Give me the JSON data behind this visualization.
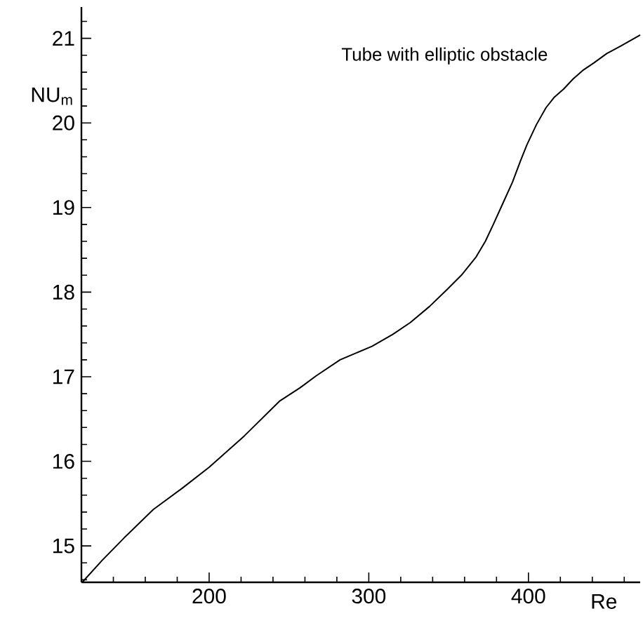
{
  "chart_data": {
    "type": "line",
    "xlabel": "Re",
    "ylabel": "NU$_{m}$",
    "annotations": [
      "Tube with elliptic obstacle"
    ],
    "xlim": [
      120,
      470
    ],
    "ylim": [
      14.57,
      21.37
    ],
    "xticks": [
      {
        "value": 140,
        "label": null
      },
      {
        "value": 160,
        "label": null
      },
      {
        "value": 180,
        "label": null
      },
      200,
      {
        "value": 220,
        "label": null
      },
      {
        "value": 240,
        "label": null
      },
      {
        "value": 260,
        "label": null
      },
      {
        "value": 280,
        "label": null
      },
      300,
      {
        "value": 320,
        "label": null
      },
      {
        "value": 340,
        "label": null
      },
      {
        "value": 360,
        "label": null
      },
      {
        "value": 380,
        "label": null
      },
      400,
      {
        "value": 420,
        "label": null
      },
      {
        "value": 440,
        "label": null
      },
      {
        "value": 460,
        "label": null
      }
    ],
    "yticks": [
      {
        "value": 14.6,
        "label": null
      },
      {
        "value": 14.8,
        "label": null
      },
      15,
      {
        "value": 15.2,
        "label": null
      },
      {
        "value": 15.4,
        "label": null
      },
      {
        "value": 15.6,
        "label": null
      },
      {
        "value": 15.8,
        "label": null
      },
      16,
      {
        "value": 16.2,
        "label": null
      },
      {
        "value": 16.4,
        "label": null
      },
      {
        "value": 16.6,
        "label": null
      },
      {
        "value": 16.8,
        "label": null
      },
      17,
      {
        "value": 17.2,
        "label": null
      },
      {
        "value": 17.4,
        "label": null
      },
      {
        "value": 17.6,
        "label": null
      },
      {
        "value": 17.8,
        "label": null
      },
      18,
      {
        "value": 18.2,
        "label": null
      },
      {
        "value": 18.4,
        "label": null
      },
      {
        "value": 18.6,
        "label": null
      },
      {
        "value": 18.8,
        "label": null
      },
      19,
      {
        "value": 19.2,
        "label": null
      },
      {
        "value": 19.4,
        "label": null
      },
      {
        "value": 19.6,
        "label": null
      },
      {
        "value": 19.8,
        "label": null
      },
      20,
      {
        "value": 20.2,
        "label": null
      },
      {
        "value": 20.4,
        "label": null
      },
      {
        "value": 20.6,
        "label": null
      },
      {
        "value": 20.8,
        "label": null
      },
      21,
      {
        "value": 21.2,
        "label": null
      }
    ],
    "series": [
      {
        "color": "#000000",
        "line_style": "solid",
        "x": [
          120.5,
          133,
          147,
          165,
          183,
          200,
          222,
          244,
          257,
          267,
          282,
          302,
          315,
          326,
          338,
          349,
          358,
          367,
          373,
          378,
          384,
          390,
          395,
          399,
          405,
          411,
          416,
          422,
          428,
          434,
          441,
          449,
          458,
          470
        ],
        "values": [
          14.57,
          14.83,
          15.1,
          15.43,
          15.68,
          15.93,
          16.3,
          16.71,
          16.87,
          17.01,
          17.2,
          17.36,
          17.5,
          17.64,
          17.83,
          18.03,
          18.2,
          18.41,
          18.6,
          18.8,
          19.05,
          19.3,
          19.55,
          19.74,
          19.98,
          20.18,
          20.3,
          20.4,
          20.52,
          20.62,
          20.71,
          20.82,
          20.91,
          21.04
        ]
      }
    ]
  }
}
